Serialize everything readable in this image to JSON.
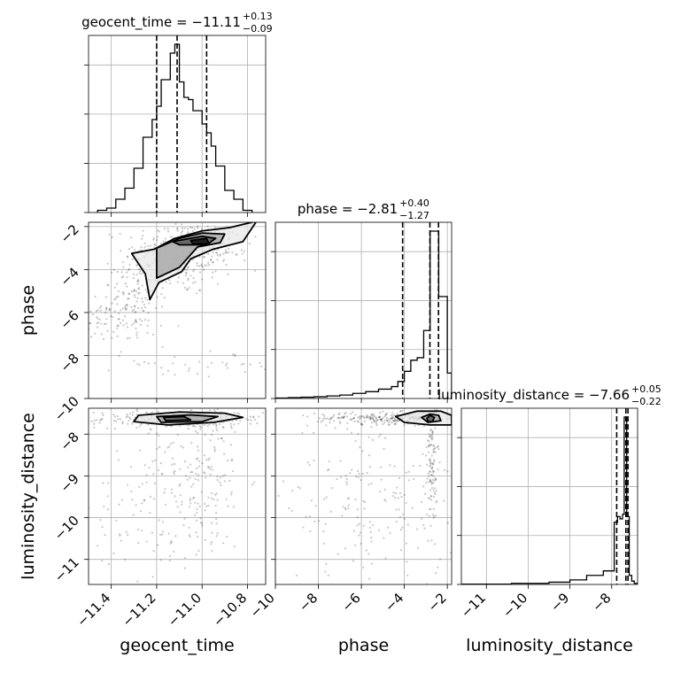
{
  "chart_data": {
    "type": "corner",
    "parameters": [
      "geocent_time",
      "phase",
      "luminosity_distance"
    ],
    "axis_labels": {
      "geocent_time": "geocent_time",
      "phase": "phase",
      "luminosity_distance": "luminosity_distance"
    },
    "ranges": {
      "geocent_time": [
        -11.5,
        -10.72
      ],
      "phase": [
        -10,
        -1.8
      ],
      "luminosity_distance": [
        -11.6,
        -7.38
      ]
    },
    "ticks": {
      "geocent_time": [
        -11.4,
        -11.2,
        -11.0,
        -10.8
      ],
      "phase": [
        -10,
        -8,
        -6,
        -4,
        -2
      ],
      "luminosity_distance": [
        -11,
        -10,
        -9,
        -8
      ]
    },
    "tick_labels": {
      "geocent_time": [
        "−11.4",
        "−11.2",
        "−11.0",
        "−10.8"
      ],
      "phase": [
        "−10",
        "−8",
        "−6",
        "−4",
        "−2"
      ],
      "luminosity_distance": [
        "−11",
        "−10",
        "−9",
        "−8"
      ]
    },
    "titles": {
      "geocent_time": {
        "name": "geocent_time",
        "median": "−11.11",
        "plus": "+0.13",
        "minus": "−0.09"
      },
      "phase": {
        "name": "phase",
        "median": "−2.81",
        "plus": "+0.40",
        "minus": "−1.27"
      },
      "luminosity_distance": {
        "name": "luminosity_distance",
        "median": "−7.66",
        "plus": "+0.05",
        "minus": "−0.22"
      }
    },
    "quantiles": {
      "geocent_time": [
        -11.2,
        -11.11,
        -10.98
      ],
      "phase": [
        -4.08,
        -2.81,
        -2.41
      ],
      "luminosity_distance": [
        -7.88,
        -7.66,
        -7.61
      ]
    },
    "histograms": {
      "geocent_time": {
        "edges": [
          -11.46,
          -11.42,
          -11.38,
          -11.34,
          -11.3,
          -11.26,
          -11.22,
          -11.2,
          -11.18,
          -11.16,
          -11.14,
          -11.12,
          -11.1,
          -11.08,
          -11.06,
          -11.04,
          -11.02,
          -11.0,
          -10.98,
          -10.96,
          -10.94,
          -10.9,
          -10.86,
          -10.82,
          -10.78
        ],
        "counts": [
          1,
          2,
          6,
          11,
          20,
          34,
          42,
          48,
          60,
          60,
          72,
          76,
          59,
          52,
          51,
          46,
          46,
          40,
          36,
          30,
          21,
          10,
          6,
          1
        ]
      },
      "phase": {
        "edges": [
          -10,
          -9.4,
          -8.8,
          -8.2,
          -7.6,
          -7.0,
          -6.4,
          -5.8,
          -5.2,
          -4.6,
          -4.3,
          -4.0,
          -3.7,
          -3.4,
          -3.1,
          -2.8,
          -2.4,
          -2.0,
          -1.8
        ],
        "counts": [
          0.5,
          1,
          1.5,
          2,
          3,
          4,
          6,
          8,
          11,
          14,
          20,
          32,
          45,
          48,
          80,
          197,
          120,
          30
        ]
      },
      "luminosity_distance": {
        "edges": [
          -11.6,
          -11.0,
          -10.4,
          -10.1,
          -9.5,
          -9.0,
          -8.6,
          -8.2,
          -7.94,
          -7.86,
          -7.8,
          -7.74,
          -7.7,
          -7.64,
          -7.58,
          -7.52,
          -7.46,
          -7.38
        ],
        "counts": [
          0.3,
          0.3,
          1,
          1,
          2,
          4,
          8,
          12,
          55,
          60,
          58,
          62,
          148,
          60,
          8,
          3,
          1
        ]
      }
    },
    "scatter_regions": [
      {
        "panel": "geocent_time-phase",
        "cx": -11.1,
        "cy": -3.4,
        "sx": 0.12,
        "sy": 0.9,
        "n": 260
      },
      {
        "panel": "geocent_time-phase",
        "cx": -11.0,
        "cy": -2.8,
        "sx": 0.1,
        "sy": 0.4,
        "n": 120
      },
      {
        "panel": "geocent_time-phase",
        "cx": -11.3,
        "cy": -5.5,
        "sx": 0.07,
        "sy": 1.0,
        "n": 150
      },
      {
        "panel": "geocent_time-phase",
        "cx": -11.45,
        "cy": -6.3,
        "sx": 0.04,
        "sy": 0.5,
        "n": 40
      },
      {
        "panel": "geocent_time-phase",
        "cx": -11.0,
        "cy": -8.4,
        "sx": 0.18,
        "sy": 0.3,
        "n": 35
      },
      {
        "panel": "geocent_time-luminosity_distance",
        "cx": -11.1,
        "cy": -7.65,
        "sx": 0.18,
        "sy": 0.1,
        "n": 320
      },
      {
        "panel": "geocent_time-luminosity_distance",
        "cx": -11.0,
        "cy": -9.0,
        "sx": 0.1,
        "sy": 0.9,
        "n": 150
      },
      {
        "panel": "geocent_time-luminosity_distance",
        "cx": -11.2,
        "cy": -9.8,
        "sx": 0.15,
        "sy": 0.9,
        "n": 110
      },
      {
        "panel": "phase-luminosity_distance",
        "cx": -4.5,
        "cy": -7.62,
        "sx": 1.8,
        "sy": 0.07,
        "n": 260
      },
      {
        "panel": "phase-luminosity_distance",
        "cx": -2.7,
        "cy": -8.6,
        "sx": 0.12,
        "sy": 0.9,
        "n": 120
      },
      {
        "panel": "phase-luminosity_distance",
        "cx": -5.5,
        "cy": -9.5,
        "sx": 2.0,
        "sy": 1.1,
        "n": 200
      }
    ],
    "contours": [
      {
        "panel": "geocent_time-phase",
        "level": "outer",
        "points": [
          [
            -11.31,
            -3.25
          ],
          [
            -11.21,
            -3.05
          ],
          [
            -11.12,
            -2.55
          ],
          [
            -11.0,
            -2.2
          ],
          [
            -10.88,
            -2.05
          ],
          [
            -10.76,
            -1.75
          ],
          [
            -10.82,
            -2.7
          ],
          [
            -10.95,
            -3.05
          ],
          [
            -11.05,
            -3.5
          ],
          [
            -11.09,
            -4.1
          ],
          [
            -11.19,
            -4.6
          ],
          [
            -11.23,
            -5.4
          ],
          [
            -11.25,
            -4.2
          ]
        ]
      },
      {
        "panel": "geocent_time-phase",
        "level": "middle",
        "points": [
          [
            -11.2,
            -3.0
          ],
          [
            -11.1,
            -2.55
          ],
          [
            -11.0,
            -2.3
          ],
          [
            -10.9,
            -2.35
          ],
          [
            -10.92,
            -2.75
          ],
          [
            -11.02,
            -2.95
          ],
          [
            -11.1,
            -3.9
          ],
          [
            -11.2,
            -4.4
          ],
          [
            -11.2,
            -3.6
          ]
        ]
      },
      {
        "panel": "geocent_time-phase",
        "level": "inner",
        "points": [
          [
            -11.13,
            -2.7
          ],
          [
            -11.0,
            -2.45
          ],
          [
            -10.94,
            -2.55
          ],
          [
            -10.98,
            -2.85
          ],
          [
            -11.1,
            -2.85
          ]
        ]
      },
      {
        "panel": "geocent_time-phase",
        "level": "core",
        "points": [
          [
            -11.05,
            -2.65
          ],
          [
            -10.98,
            -2.55
          ],
          [
            -10.97,
            -2.8
          ],
          [
            -11.04,
            -2.82
          ]
        ]
      },
      {
        "panel": "geocent_time-luminosity_distance",
        "level": "outer",
        "points": [
          [
            -11.28,
            -7.55
          ],
          [
            -11.1,
            -7.47
          ],
          [
            -10.9,
            -7.5
          ],
          [
            -10.82,
            -7.6
          ],
          [
            -10.95,
            -7.72
          ],
          [
            -11.15,
            -7.78
          ],
          [
            -11.3,
            -7.7
          ]
        ]
      },
      {
        "panel": "geocent_time-luminosity_distance",
        "level": "middle",
        "points": [
          [
            -11.2,
            -7.58
          ],
          [
            -11.05,
            -7.54
          ],
          [
            -10.93,
            -7.58
          ],
          [
            -11.0,
            -7.7
          ],
          [
            -11.18,
            -7.72
          ]
        ]
      },
      {
        "panel": "geocent_time-luminosity_distance",
        "level": "inner",
        "points": [
          [
            -11.17,
            -7.6
          ],
          [
            -11.08,
            -7.58
          ],
          [
            -11.05,
            -7.66
          ],
          [
            -11.16,
            -7.68
          ]
        ]
      },
      {
        "panel": "phase-luminosity_distance",
        "level": "outer",
        "points": [
          [
            -4.4,
            -7.58
          ],
          [
            -3.4,
            -7.45
          ],
          [
            -2.3,
            -7.45
          ],
          [
            -1.8,
            -7.55
          ],
          [
            -1.8,
            -7.78
          ],
          [
            -2.8,
            -7.78
          ],
          [
            -4.0,
            -7.72
          ]
        ]
      },
      {
        "panel": "phase-luminosity_distance",
        "level": "middle",
        "points": [
          [
            -3.2,
            -7.6
          ],
          [
            -2.8,
            -7.52
          ],
          [
            -2.4,
            -7.55
          ],
          [
            -2.3,
            -7.68
          ],
          [
            -2.9,
            -7.72
          ]
        ]
      },
      {
        "panel": "phase-luminosity_distance",
        "level": "inner",
        "points": [
          [
            -2.95,
            -7.62
          ],
          [
            -2.8,
            -7.55
          ],
          [
            -2.6,
            -7.6
          ],
          [
            -2.7,
            -7.7
          ],
          [
            -2.9,
            -7.7
          ]
        ]
      }
    ],
    "grid": true,
    "xlabel": [
      "geocent_time",
      "phase",
      "luminosity_distance"
    ],
    "ylabel": [
      "phase",
      "luminosity_distance"
    ]
  }
}
